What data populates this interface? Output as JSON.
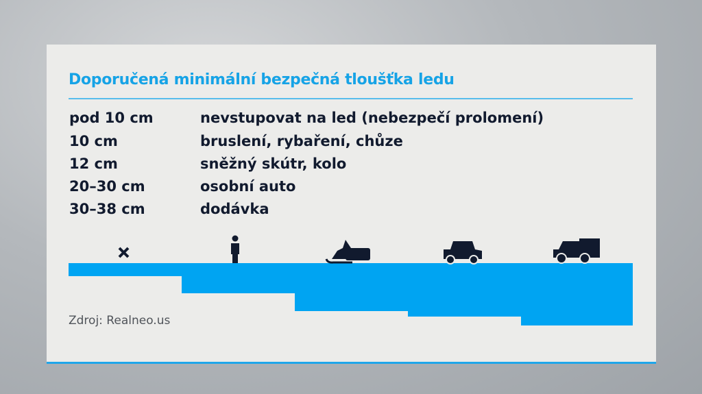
{
  "title": "Doporučená minimální bezpečná tloušťka ledu",
  "rows": [
    {
      "thickness": "pod 10 cm",
      "use": "nevstupovat na led (nebezpečí prolomení)"
    },
    {
      "thickness": "10 cm",
      "use": "bruslení, rybaření, chůze"
    },
    {
      "thickness": "12 cm",
      "use": "sněžný skútr, kolo"
    },
    {
      "thickness": "20–30 cm",
      "use": "osobní auto"
    },
    {
      "thickness": "30–38 cm",
      "use": "dodávka"
    }
  ],
  "icons": [
    "x-icon",
    "person-icon",
    "snowmobile-icon",
    "car-icon",
    "van-icon"
  ],
  "source": "Zdroj: Realneo.us",
  "colors": {
    "accent": "#16a3e6",
    "ice": "#00a4f2",
    "text": "#111a2e"
  }
}
